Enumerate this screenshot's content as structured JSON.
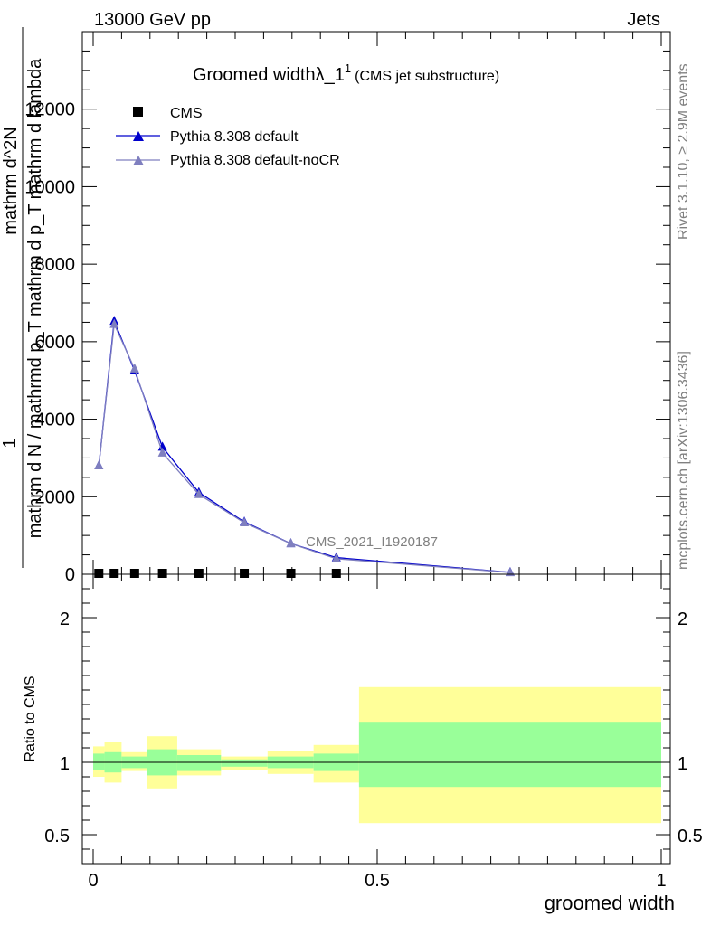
{
  "header": {
    "left": "13000 GeV pp",
    "right": "Jets"
  },
  "side_labels": {
    "rivet": "Rivet 3.1.10, ≥ 2.9M events",
    "mcplots": "mcplots.cern.ch [arXiv:1306.3436]"
  },
  "chart_data": [
    {
      "type": "line",
      "title": "Groomed widthλ_1",
      "title_superscript": "1",
      "subtitle": "(CMS jet substructure)",
      "watermark": "CMS_2021_I1920187",
      "ylabel_num": "1",
      "ylabel_denom": "mathrm d N / mathrmd p_T mathrm d p_T mathrm d lambda",
      "ylabel_overlay": "mathrm d^2N",
      "ylim": [
        0,
        14000
      ],
      "xlim": [
        0,
        1
      ],
      "yticks": [
        0,
        2000,
        4000,
        6000,
        8000,
        10000,
        12000
      ],
      "ytick_labels": [
        "0",
        "2000",
        "4000",
        "6000",
        "8000",
        "10000",
        "12000"
      ],
      "legend_position": "top-left",
      "series": [
        {
          "name": "CMS",
          "marker": "square",
          "color": "#000000",
          "x": [
            0.01,
            0.037,
            0.073,
            0.122,
            0.186,
            0.266,
            0.348,
            0.428
          ],
          "y": [
            0,
            0,
            0,
            0,
            0,
            0,
            0,
            0
          ]
        },
        {
          "name": "Pythia 8.308 default",
          "marker": "triangle",
          "color": "#0000cc",
          "x": [
            0.01,
            0.037,
            0.073,
            0.122,
            0.186,
            0.266,
            0.348,
            0.428,
            0.734
          ],
          "y": [
            2800,
            6530,
            5250,
            3280,
            2110,
            1350,
            790,
            430,
            50
          ]
        },
        {
          "name": "Pythia 8.308 default-noCR",
          "marker": "triangle",
          "color": "#7f7fbf",
          "x": [
            0.01,
            0.037,
            0.073,
            0.122,
            0.186,
            0.266,
            0.348,
            0.428,
            0.734
          ],
          "y": [
            2800,
            6450,
            5300,
            3130,
            2060,
            1330,
            790,
            400,
            45
          ]
        }
      ]
    },
    {
      "type": "area",
      "ylabel": "Ratio to CMS",
      "xlabel": "groomed width",
      "ylim": [
        0.3,
        2.3
      ],
      "xlim": [
        0,
        1
      ],
      "yticks": [
        0.5,
        1,
        2
      ],
      "ytick_labels": [
        "0.5",
        "1",
        "2"
      ],
      "xticks": [
        0,
        0.5,
        1
      ],
      "xtick_labels": [
        "0",
        "0.5",
        "1"
      ],
      "bands": [
        {
          "x0": 0.0,
          "x1": 0.02,
          "green": [
            0.95,
            1.06
          ],
          "yellow": [
            0.9,
            1.11
          ]
        },
        {
          "x0": 0.02,
          "x1": 0.05,
          "green": [
            0.93,
            1.07
          ],
          "yellow": [
            0.86,
            1.14
          ]
        },
        {
          "x0": 0.05,
          "x1": 0.095,
          "green": [
            0.96,
            1.04
          ],
          "yellow": [
            0.94,
            1.07
          ]
        },
        {
          "x0": 0.095,
          "x1": 0.148,
          "green": [
            0.91,
            1.09
          ],
          "yellow": [
            0.82,
            1.18
          ]
        },
        {
          "x0": 0.148,
          "x1": 0.225,
          "green": [
            0.94,
            1.05
          ],
          "yellow": [
            0.91,
            1.09
          ]
        },
        {
          "x0": 0.225,
          "x1": 0.307,
          "green": [
            0.97,
            1.02
          ],
          "yellow": [
            0.95,
            1.04
          ]
        },
        {
          "x0": 0.307,
          "x1": 0.388,
          "green": [
            0.96,
            1.04
          ],
          "yellow": [
            0.92,
            1.08
          ]
        },
        {
          "x0": 0.388,
          "x1": 0.468,
          "green": [
            0.94,
            1.06
          ],
          "yellow": [
            0.86,
            1.12
          ]
        },
        {
          "x0": 0.468,
          "x1": 1.0,
          "green": [
            0.83,
            1.28
          ],
          "yellow": [
            0.58,
            1.52
          ]
        }
      ],
      "reference": 1,
      "yellow_color": "#ffff99",
      "green_color": "#99ff99"
    }
  ]
}
